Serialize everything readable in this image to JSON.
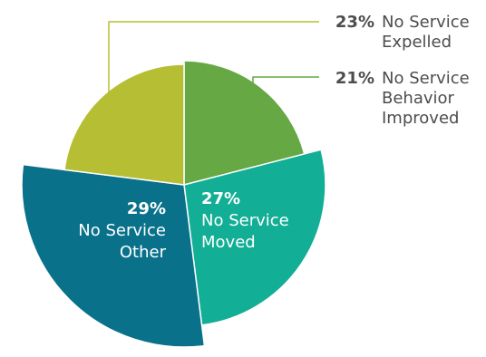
{
  "chart_data": {
    "type": "pie",
    "title": "",
    "slices": [
      {
        "name": "No Service Behavior Improved",
        "value": 21,
        "percent_label": "21%",
        "label_lines": [
          "No Service",
          "Behavior",
          "Improved"
        ],
        "color": "#65a844",
        "label_placement": "outside-leader"
      },
      {
        "name": "No Service Moved",
        "value": 27,
        "percent_label": "27%",
        "label_lines": [
          "No Service",
          "Moved"
        ],
        "color": "#12ae95",
        "label_placement": "inside"
      },
      {
        "name": "No Service Other",
        "value": 29,
        "percent_label": "29%",
        "label_lines": [
          "No Service",
          "Other"
        ],
        "color": "#0a718b",
        "label_placement": "inside"
      },
      {
        "name": "No Service Expelled",
        "value": 23,
        "percent_label": "23%",
        "label_lines": [
          "No Service",
          "Expelled"
        ],
        "color": "#b6bf34",
        "label_placement": "outside-leader"
      }
    ],
    "leader_line_color": "#b6bf34",
    "leader_line_color_secondary": "#65a844",
    "percent_text_color": "#4d4d4d",
    "label_text_color": "#4d4d4d",
    "inside_label_color": "#ffffff"
  }
}
